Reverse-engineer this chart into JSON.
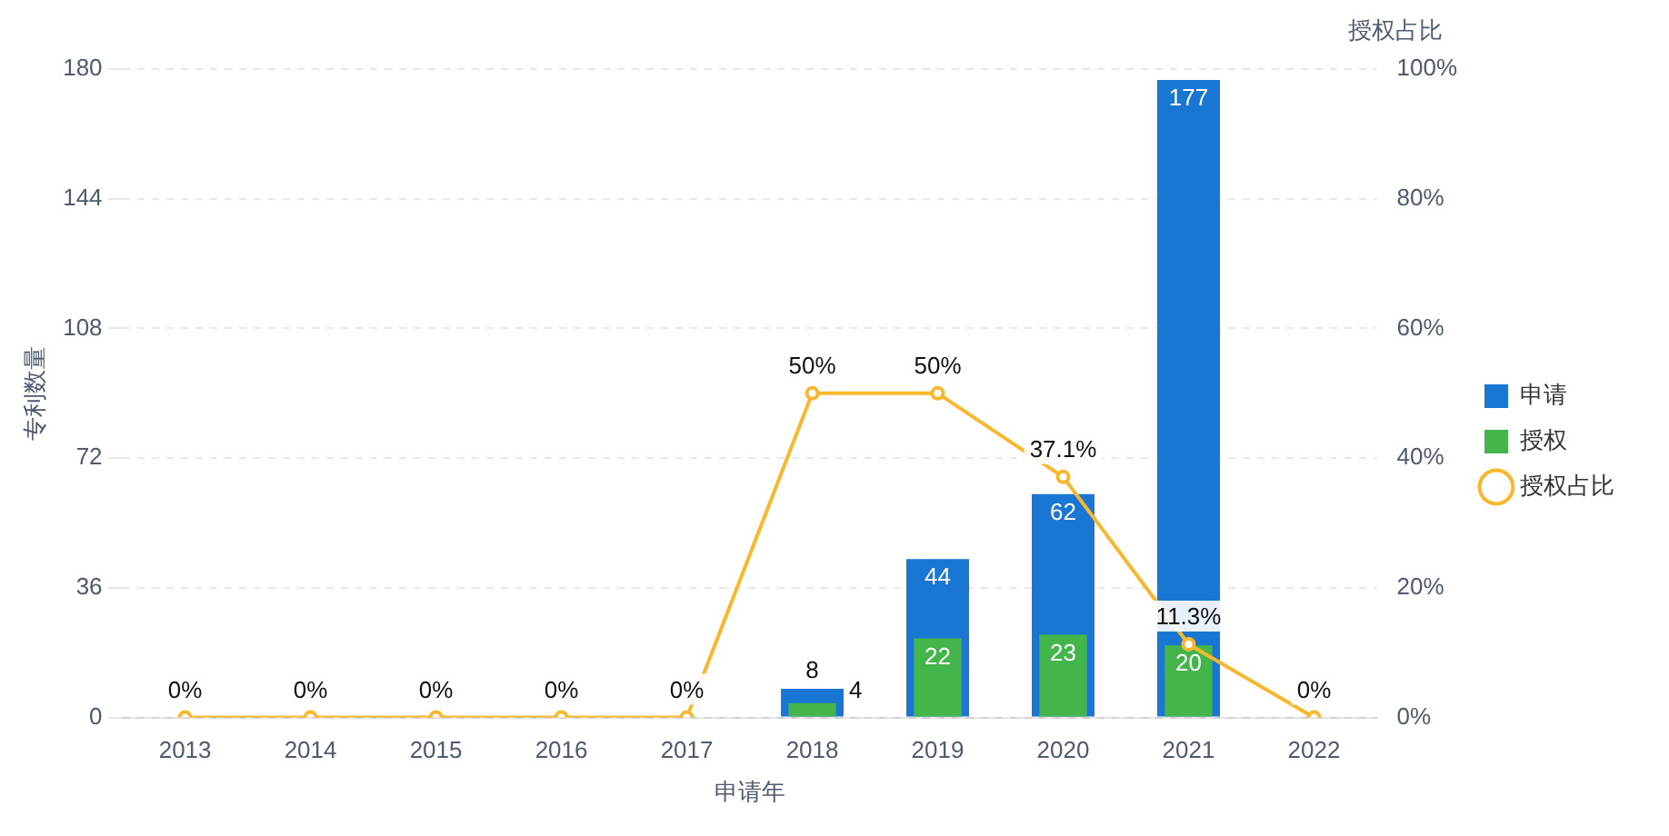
{
  "chart_data": {
    "type": "bar",
    "xlabel": "申请年",
    "ylabel": "专利数量",
    "y2label": "授权占比",
    "categories": [
      "2013",
      "2014",
      "2015",
      "2016",
      "2017",
      "2018",
      "2019",
      "2020",
      "2021",
      "2022"
    ],
    "series": [
      {
        "name": "申请",
        "color": "#1976d2",
        "values": [
          0,
          0,
          0,
          0,
          0,
          8,
          44,
          62,
          177,
          0
        ],
        "value_labels": [
          null,
          null,
          null,
          null,
          null,
          "8",
          "44",
          "62",
          "177",
          null
        ]
      },
      {
        "name": "授权",
        "color": "#43b54a",
        "values": [
          0,
          0,
          0,
          0,
          0,
          4,
          22,
          23,
          20,
          0
        ],
        "value_labels": [
          null,
          null,
          null,
          null,
          null,
          "4",
          "22",
          "23",
          "20",
          null
        ]
      },
      {
        "name": "授权占比",
        "type": "line",
        "axis": "y2",
        "color": "#f8b72d",
        "marker": "circle",
        "values": [
          0,
          0,
          0,
          0,
          0,
          50,
          50,
          37.1,
          11.3,
          0
        ],
        "value_labels": [
          "0%",
          "0%",
          "0%",
          "0%",
          "0%",
          "50%",
          "50%",
          "37.1%",
          "11.3%",
          "0%"
        ]
      }
    ],
    "ylim": [
      0,
      180
    ],
    "yticks": [
      0,
      36,
      72,
      108,
      144,
      180
    ],
    "y2lim": [
      0,
      100
    ],
    "y2ticks": [
      {
        "value": 0,
        "label": "0%"
      },
      {
        "value": 20,
        "label": "20%"
      },
      {
        "value": 40,
        "label": "40%"
      },
      {
        "value": 60,
        "label": "60%"
      },
      {
        "value": 80,
        "label": "80%"
      },
      {
        "value": 100,
        "label": "100%"
      }
    ],
    "grid": "y",
    "legend": "right"
  }
}
